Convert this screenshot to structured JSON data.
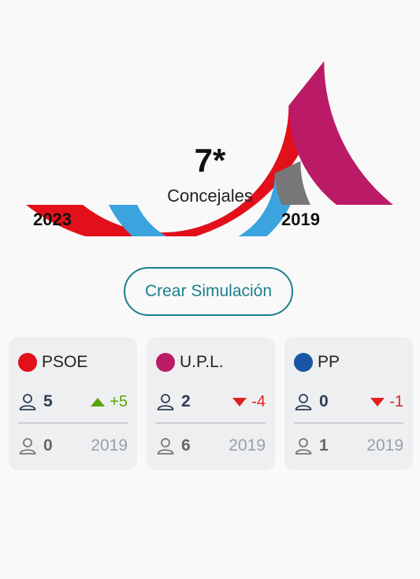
{
  "chart_data": {
    "type": "pie",
    "center_value": "7*",
    "center_label": "Concejales",
    "outer_year": "2023",
    "inner_year": "2019",
    "outer_ring": [
      {
        "party": "PSOE",
        "seats": 5,
        "color": "#e2101a"
      },
      {
        "party": "U.P.L.",
        "seats": 2,
        "color": "#bb1b66"
      }
    ],
    "inner_ring": [
      {
        "party": "U.P.L.",
        "seats": 6,
        "color": "#3ba3de"
      },
      {
        "party": "PP",
        "seats": 1,
        "color": "#777777"
      }
    ]
  },
  "simulation_button": "Crear Simulación",
  "cards": [
    {
      "party": "PSOE",
      "color": "#e2101a",
      "seats_2023": "5",
      "change": "+5",
      "trend": "up",
      "seats_2019": "0",
      "ref_year": "2019"
    },
    {
      "party": "U.P.L.",
      "color": "#bb1b66",
      "seats_2023": "2",
      "change": "-4",
      "trend": "down",
      "seats_2019": "6",
      "ref_year": "2019"
    },
    {
      "party": "PP",
      "color": "#1a56a3",
      "seats_2023": "0",
      "change": "-1",
      "trend": "down",
      "seats_2019": "1",
      "ref_year": "2019"
    }
  ]
}
